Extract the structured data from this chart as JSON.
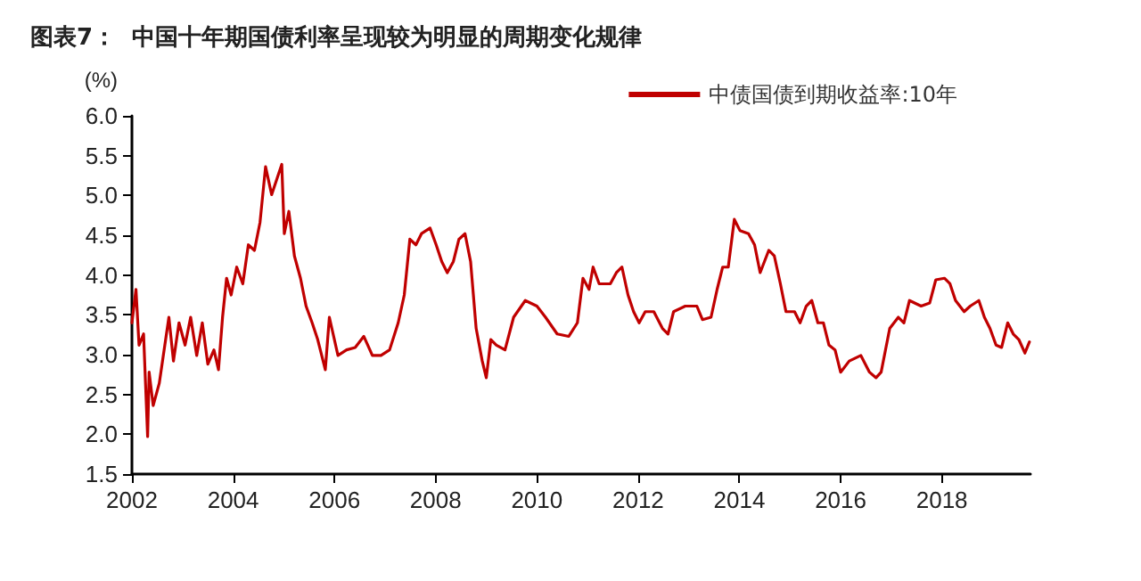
{
  "chart_data": {
    "type": "line",
    "title": "图表7：  中国十年期国债利率呈现较为明显的周期变化规律",
    "ylabel": "(%)",
    "xlim": [
      2002,
      2019.75
    ],
    "xticks": [
      2002,
      2004,
      2006,
      2008,
      2010,
      2012,
      2014,
      2016,
      2018
    ],
    "ylim": [
      1.5,
      6.0
    ],
    "yticks": [
      {
        "value": 1.5,
        "label": "1.5"
      },
      {
        "value": 2,
        "label": "2.0"
      },
      {
        "value": 2.5,
        "label": "2.5"
      },
      {
        "value": 3,
        "label": "3.0"
      },
      {
        "value": 3.5,
        "label": "3.5"
      },
      {
        "value": 4,
        "label": "4.0"
      },
      {
        "value": 4.5,
        "label": "4.5"
      },
      {
        "value": 5,
        "label": "5.0"
      },
      {
        "value": 5.5,
        "label": "5.5"
      },
      {
        "value": 6,
        "label": "6.0"
      }
    ],
    "grid": false,
    "legend": "top right",
    "marker": "none",
    "line_style": "solid",
    "series": [
      {
        "name": "中债国债到期收益率:10年",
        "color": "#c00000",
        "x": [
          2002.0,
          2002.08,
          2002.14,
          2002.23,
          2002.31,
          2002.34,
          2002.42,
          2002.54,
          2002.65,
          2002.73,
          2002.82,
          2002.93,
          2003.05,
          2003.16,
          2003.28,
          2003.39,
          2003.5,
          2003.62,
          2003.71,
          2003.79,
          2003.87,
          2003.96,
          2004.07,
          2004.19,
          2004.3,
          2004.42,
          2004.53,
          2004.64,
          2004.76,
          2004.87,
          2004.96,
          2005.01,
          2005.1,
          2005.21,
          2005.33,
          2005.44,
          2005.56,
          2005.67,
          2005.82,
          2005.9,
          2006.07,
          2006.24,
          2006.41,
          2006.58,
          2006.75,
          2006.92,
          2007.09,
          2007.26,
          2007.38,
          2007.49,
          2007.61,
          2007.72,
          2007.89,
          2008.01,
          2008.12,
          2008.23,
          2008.35,
          2008.46,
          2008.58,
          2008.69,
          2008.8,
          2008.92,
          2009.0,
          2009.09,
          2009.2,
          2009.37,
          2009.54,
          2009.77,
          2010.0,
          2010.17,
          2010.4,
          2010.63,
          2010.8,
          2010.91,
          2011.03,
          2011.11,
          2011.23,
          2011.45,
          2011.57,
          2011.68,
          2011.8,
          2011.91,
          2012.02,
          2012.14,
          2012.31,
          2012.48,
          2012.59,
          2012.7,
          2012.93,
          2013.16,
          2013.27,
          2013.44,
          2013.56,
          2013.67,
          2013.78,
          2013.9,
          2014.01,
          2014.18,
          2014.3,
          2014.41,
          2014.58,
          2014.69,
          2014.81,
          2014.92,
          2015.09,
          2015.2,
          2015.32,
          2015.43,
          2015.55,
          2015.66,
          2015.77,
          2015.89,
          2016.0,
          2016.17,
          2016.4,
          2016.57,
          2016.7,
          2016.8,
          2016.97,
          2017.14,
          2017.25,
          2017.36,
          2017.59,
          2017.76,
          2017.88,
          2018.05,
          2018.16,
          2018.27,
          2018.44,
          2018.56,
          2018.73,
          2018.84,
          2018.95,
          2019.07,
          2019.18,
          2019.3,
          2019.41,
          2019.52,
          2019.64,
          2019.73
        ],
        "values": [
          3.4,
          3.82,
          3.12,
          3.26,
          1.97,
          2.78,
          2.36,
          2.64,
          3.12,
          3.47,
          2.92,
          3.4,
          3.12,
          3.47,
          2.99,
          3.4,
          2.88,
          3.06,
          2.81,
          3.47,
          3.96,
          3.75,
          4.1,
          3.89,
          4.38,
          4.31,
          4.66,
          5.36,
          5.01,
          5.22,
          5.39,
          4.52,
          4.8,
          4.24,
          3.96,
          3.61,
          3.4,
          3.19,
          2.81,
          3.47,
          2.99,
          3.06,
          3.09,
          3.23,
          2.99,
          2.99,
          3.06,
          3.4,
          3.75,
          4.45,
          4.38,
          4.52,
          4.59,
          4.38,
          4.17,
          4.03,
          4.17,
          4.45,
          4.52,
          4.17,
          3.33,
          2.92,
          2.71,
          3.19,
          3.12,
          3.06,
          3.47,
          3.68,
          3.61,
          3.47,
          3.26,
          3.23,
          3.4,
          3.96,
          3.82,
          4.1,
          3.89,
          3.89,
          4.03,
          4.1,
          3.75,
          3.54,
          3.4,
          3.54,
          3.54,
          3.33,
          3.26,
          3.54,
          3.61,
          3.61,
          3.44,
          3.47,
          3.82,
          4.1,
          4.1,
          4.7,
          4.56,
          4.52,
          4.38,
          4.03,
          4.31,
          4.24,
          3.89,
          3.54,
          3.54,
          3.4,
          3.61,
          3.68,
          3.4,
          3.4,
          3.12,
          3.06,
          2.78,
          2.92,
          2.99,
          2.78,
          2.71,
          2.78,
          3.33,
          3.47,
          3.4,
          3.68,
          3.61,
          3.65,
          3.94,
          3.96,
          3.89,
          3.68,
          3.54,
          3.61,
          3.68,
          3.47,
          3.33,
          3.12,
          3.09,
          3.4,
          3.26,
          3.19,
          3.02,
          3.16
        ]
      }
    ]
  }
}
